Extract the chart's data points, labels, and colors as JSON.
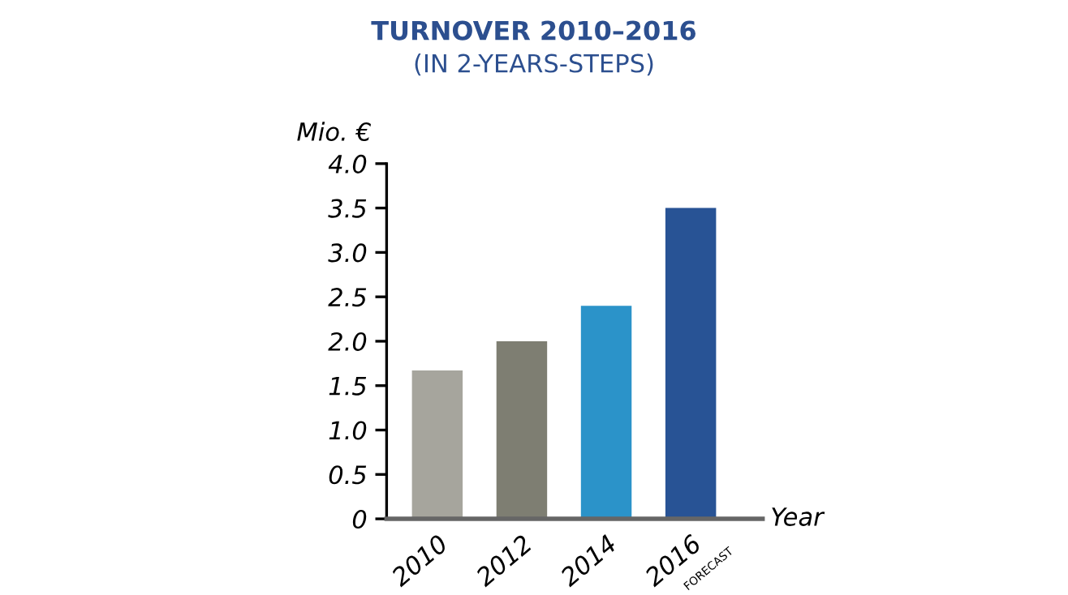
{
  "chart_data": {
    "type": "bar",
    "title": "TURNOVER 2010–2016",
    "subtitle": "(IN 2-YEARS-STEPS)",
    "ylabel": "Mio. €",
    "xlabel": "Year",
    "categories": [
      "2010",
      "2012",
      "2014",
      "2016"
    ],
    "values": [
      1.67,
      2.0,
      2.4,
      3.5
    ],
    "colors": [
      "#a6a59d",
      "#7e7e72",
      "#2b93c9",
      "#285395"
    ],
    "ylim": [
      0,
      4.0
    ],
    "yticks": [
      {
        "value": 0,
        "label": "0"
      },
      {
        "value": 0.5,
        "label": "0.5"
      },
      {
        "value": 1.0,
        "label": "1.0"
      },
      {
        "value": 1.5,
        "label": "1.5"
      },
      {
        "value": 2.0,
        "label": "2.0"
      },
      {
        "value": 2.5,
        "label": "2.5"
      },
      {
        "value": 3.0,
        "label": "3.0"
      },
      {
        "value": 3.5,
        "label": "3.5"
      },
      {
        "value": 4.0,
        "label": "4.0"
      }
    ],
    "annotations": [
      "FORECAST"
    ],
    "grid": false
  }
}
